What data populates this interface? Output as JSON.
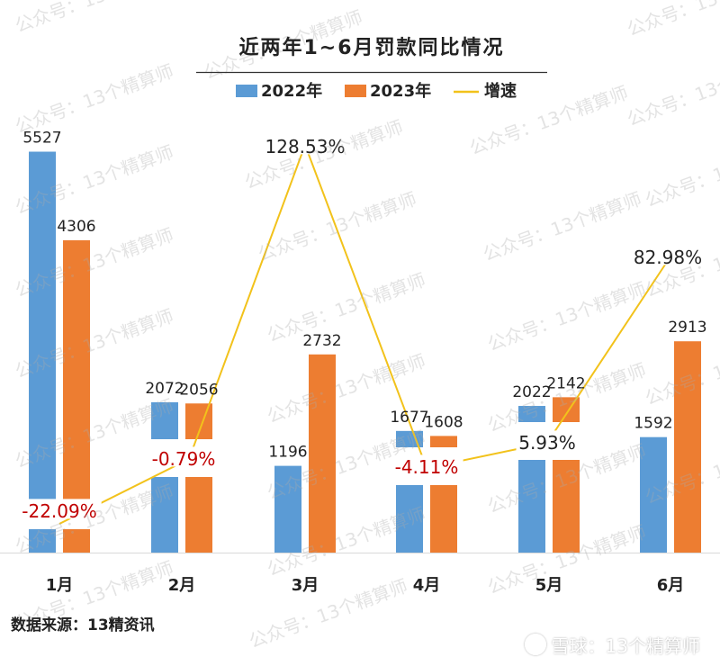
{
  "watermark": {
    "text": "公众号：13个精算师"
  },
  "footer": {
    "source": "数据来源：13精资讯",
    "credit": "雪球：13个精算师",
    "credit_icon": "snowball-logo-icon"
  },
  "colors": {
    "series_2022": "#5b9bd5",
    "series_2023": "#ed7d31",
    "growth_line": "#f2c21b",
    "negative_label": "#c00000",
    "positive_label": "#222222"
  },
  "chart_data": {
    "type": "bar",
    "title": "近两年1~6月罚款同比情况",
    "categories": [
      "1月",
      "2月",
      "3月",
      "4月",
      "5月",
      "6月"
    ],
    "series": [
      {
        "name": "2022年",
        "values": [
          5527,
          2072,
          1196,
          1677,
          2022,
          1592
        ]
      },
      {
        "name": "2023年",
        "values": [
          4306,
          2056,
          2732,
          1608,
          2142,
          2913
        ]
      }
    ],
    "value_labels": {
      "2022年": [
        "5527",
        "2072",
        "1196",
        "1677",
        "2022",
        "1592"
      ],
      "2023年": [
        "4306",
        "2056",
        "2732",
        "1608",
        "2142",
        "2913"
      ]
    },
    "growth": {
      "name": "增速",
      "values": [
        -22.09,
        -0.79,
        128.53,
        -4.11,
        5.93,
        82.98
      ],
      "labels": [
        "-22.09%",
        "-0.79%",
        "128.53%",
        "-4.11%",
        "5.93%",
        "82.98%"
      ]
    },
    "legend_position": "top",
    "grid": false
  }
}
